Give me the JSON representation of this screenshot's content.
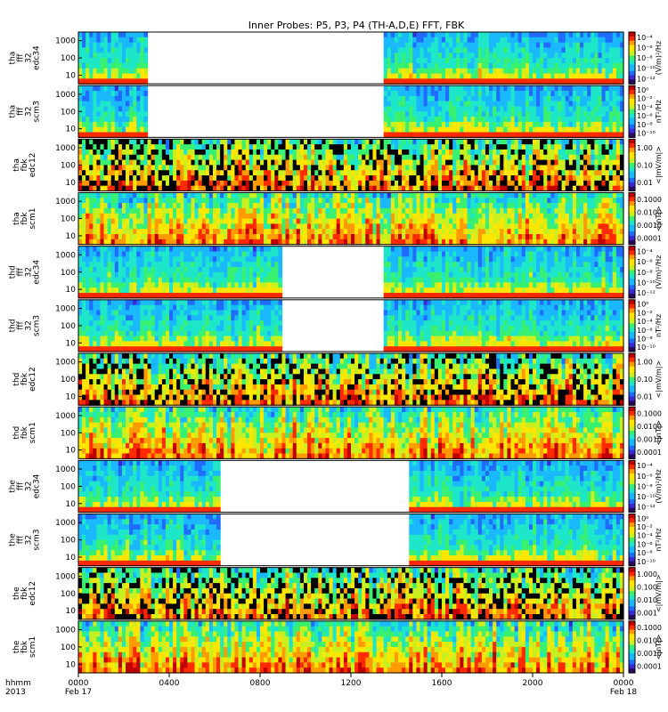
{
  "chart_data": {
    "type": "heatmap",
    "title": "Inner Probes: P5, P3, P4 (TH-A,D,E) FFT, FBK",
    "x_axis": {
      "label_line1": "hhmm",
      "label_line2": "2013",
      "range_hours": [
        0,
        24
      ],
      "ticks": [
        {
          "hour": 0,
          "label": "0000",
          "sub": "Feb 17"
        },
        {
          "hour": 4,
          "label": "0400",
          "sub": ""
        },
        {
          "hour": 8,
          "label": "0800",
          "sub": ""
        },
        {
          "hour": 12,
          "label": "1200",
          "sub": ""
        },
        {
          "hour": 16,
          "label": "1600",
          "sub": ""
        },
        {
          "hour": 20,
          "label": "2000",
          "sub": ""
        },
        {
          "hour": 24,
          "label": "0000",
          "sub": "Feb 18"
        }
      ]
    },
    "y_ticks": [
      "1000",
      "100",
      "10"
    ],
    "y_ticks_fbk": [
      "1000",
      "100",
      "10"
    ],
    "panels": [
      {
        "probe": "tha",
        "label": [
          "tha",
          "fff",
          "32",
          "edc34"
        ],
        "kind": "fff-e",
        "gaps": [
          [
            3,
            13.5
          ]
        ],
        "cbar_label": "(V/m)²/Hz",
        "cbar_ticks": [
          "10⁻⁴",
          "10⁻⁶",
          "10⁻⁸",
          "10⁻¹⁰",
          "10⁻¹²"
        ]
      },
      {
        "probe": "tha",
        "label": [
          "tha",
          "fff",
          "32",
          "scm3"
        ],
        "kind": "fff-b",
        "gaps": [
          [
            3,
            13.5
          ]
        ],
        "cbar_label": "nT²/Hz",
        "cbar_ticks": [
          "10⁰",
          "10⁻²",
          "10⁻⁴",
          "10⁻⁶",
          "10⁻⁸",
          "10⁻¹⁰"
        ]
      },
      {
        "probe": "tha",
        "label": [
          "tha",
          "fbk",
          "edc12"
        ],
        "kind": "fbk-e",
        "gaps": [],
        "cbar_label": "<|mV/m|>",
        "cbar_ticks": [
          "1.00",
          "0.10",
          "0.01"
        ]
      },
      {
        "probe": "tha",
        "label": [
          "tha",
          "fbk",
          "scm1"
        ],
        "kind": "fbk-b",
        "gaps": [],
        "cbar_label": "<|nT|>",
        "cbar_ticks": [
          "0.1000",
          "0.0100",
          "0.0010",
          "0.0001"
        ]
      },
      {
        "probe": "thd",
        "label": [
          "thd",
          "fff",
          "32",
          "edc34"
        ],
        "kind": "fff-e",
        "gaps": [
          [
            9,
            13.5
          ]
        ],
        "cbar_label": "(V/m)²/Hz",
        "cbar_ticks": [
          "10⁻⁴",
          "10⁻⁶",
          "10⁻⁸",
          "10⁻¹⁰",
          "10⁻¹²"
        ]
      },
      {
        "probe": "thd",
        "label": [
          "thd",
          "fff",
          "32",
          "scm3"
        ],
        "kind": "fff-b",
        "gaps": [
          [
            9,
            13.5
          ]
        ],
        "cbar_label": "nT²/Hz",
        "cbar_ticks": [
          "10⁰",
          "10⁻²",
          "10⁻⁴",
          "10⁻⁶",
          "10⁻⁸",
          "10⁻¹⁰"
        ]
      },
      {
        "probe": "thd",
        "label": [
          "thd",
          "fbk",
          "edc12"
        ],
        "kind": "fbk-e",
        "gaps": [],
        "cbar_label": "<|mV/m|>",
        "cbar_ticks": [
          "1.00",
          "0.10",
          "0.01"
        ]
      },
      {
        "probe": "thd",
        "label": [
          "thd",
          "fbk",
          "scm1"
        ],
        "kind": "fbk-b",
        "gaps": [],
        "cbar_label": "<|nT|>",
        "cbar_ticks": [
          "0.1000",
          "0.0100",
          "0.0010",
          "0.0001"
        ]
      },
      {
        "probe": "the",
        "label": [
          "the",
          "fff",
          "32",
          "edc34"
        ],
        "kind": "fff-e",
        "gaps": [
          [
            6.2,
            14.5
          ]
        ],
        "cbar_label": "(V/m)²/Hz",
        "cbar_ticks": [
          "10⁻⁴",
          "10⁻⁶",
          "10⁻⁸",
          "10⁻¹⁰",
          "10⁻¹²"
        ]
      },
      {
        "probe": "the",
        "label": [
          "the",
          "fff",
          "32",
          "scm3"
        ],
        "kind": "fff-b",
        "gaps": [
          [
            6.2,
            14.5
          ]
        ],
        "cbar_label": "nT²/Hz",
        "cbar_ticks": [
          "10⁰",
          "10⁻²",
          "10⁻⁴",
          "10⁻⁶",
          "10⁻⁸",
          "10⁻¹⁰"
        ]
      },
      {
        "probe": "the",
        "label": [
          "the",
          "fbk",
          "edc12"
        ],
        "kind": "fbk-e",
        "gaps": [],
        "cbar_label": "<|mV/m|>",
        "cbar_ticks": [
          "1.000",
          "0.100",
          "0.010",
          "0.001"
        ]
      },
      {
        "probe": "the",
        "label": [
          "the",
          "fbk",
          "scm1"
        ],
        "kind": "fbk-b",
        "gaps": [],
        "cbar_label": "<|nT|>",
        "cbar_ticks": [
          "0.1000",
          "0.0100",
          "0.0010",
          "0.0001"
        ]
      }
    ],
    "colormap": [
      "#2a0a5e",
      "#3a2ad8",
      "#1f6cff",
      "#19b8ff",
      "#1ee6c8",
      "#39f070",
      "#c8f020",
      "#ffe600",
      "#ff9a00",
      "#ff2a00",
      "#c00000"
    ]
  }
}
